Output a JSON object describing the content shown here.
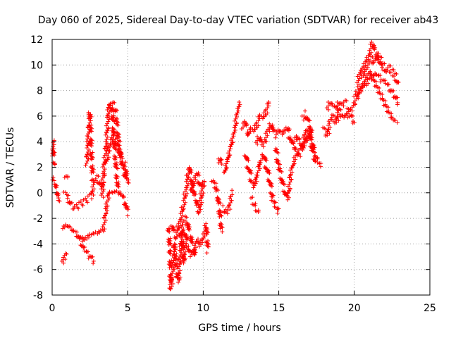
{
  "chart_data": {
    "type": "scatter",
    "title": "Day 060 of 2025, Sidereal Day-to-day VTEC variation (SDTVAR) for receiver ab43",
    "xlabel": "GPS time / hours",
    "ylabel": "SDTVAR / TECUs",
    "xlim": [
      0,
      25
    ],
    "ylim": [
      -8,
      12
    ],
    "xticks": [
      "0",
      "5",
      "10",
      "15",
      "20",
      "25"
    ],
    "yticks": [
      "-8",
      "-6",
      "-4",
      "-2",
      "0",
      "2",
      "4",
      "6",
      "8",
      "10",
      "12"
    ],
    "grid": true,
    "marker": "plus",
    "color": "#ff0000",
    "series_tracks": [
      [
        [
          0.0,
          1.3
        ],
        [
          0.15,
          1.0
        ],
        [
          0.3,
          0.3
        ],
        [
          0.4,
          -0.3
        ],
        [
          0.5,
          -0.6
        ]
      ],
      [
        [
          0.0,
          3.0
        ],
        [
          0.05,
          4.0
        ],
        [
          0.1,
          2.2
        ]
      ],
      [
        [
          0.7,
          -5.5
        ],
        [
          0.8,
          -5.2
        ],
        [
          0.9,
          -4.8
        ]
      ],
      [
        [
          0.8,
          1.3
        ],
        [
          0.9,
          1.4
        ],
        [
          1.0,
          1.3
        ]
      ],
      [
        [
          0.7,
          -2.6
        ],
        [
          1.0,
          -2.4
        ],
        [
          1.3,
          -2.7
        ],
        [
          1.6,
          -3.2
        ],
        [
          2.0,
          -3.6
        ],
        [
          2.3,
          -3.4
        ],
        [
          2.6,
          -3.1
        ],
        [
          3.0,
          -3.0
        ],
        [
          3.4,
          -2.8
        ],
        [
          3.6,
          -1.0
        ],
        [
          3.8,
          0.2
        ],
        [
          4.0,
          0.2
        ],
        [
          4.4,
          0.2
        ],
        [
          4.8,
          -0.6
        ],
        [
          5.0,
          -1.6
        ]
      ],
      [
        [
          0.8,
          -0.1
        ],
        [
          1.0,
          -0.3
        ],
        [
          1.2,
          -0.9
        ],
        [
          1.5,
          -1.2
        ],
        [
          1.8,
          -0.9
        ],
        [
          2.1,
          -0.7
        ],
        [
          2.4,
          -0.4
        ],
        [
          2.6,
          -0.2
        ],
        [
          2.8,
          0.8
        ],
        [
          3.0,
          1.2
        ],
        [
          3.2,
          0.6
        ],
        [
          3.4,
          0.4
        ]
      ],
      [
        [
          1.8,
          -3.5
        ],
        [
          2.0,
          -4.2
        ],
        [
          2.2,
          -4.6
        ],
        [
          2.5,
          -5.0
        ],
        [
          2.8,
          -5.4
        ]
      ],
      [
        [
          2.3,
          2.2
        ],
        [
          2.4,
          4.5
        ],
        [
          2.5,
          6.2
        ],
        [
          2.6,
          3.0
        ],
        [
          2.7,
          1.0
        ]
      ],
      [
        [
          3.3,
          -0.2
        ],
        [
          3.4,
          1.5
        ],
        [
          3.6,
          4.0
        ],
        [
          3.7,
          6.0
        ],
        [
          3.8,
          7.1
        ],
        [
          3.9,
          6.8
        ],
        [
          4.0,
          6.2
        ],
        [
          4.1,
          4.0
        ],
        [
          4.2,
          2.5
        ],
        [
          4.3,
          1.0
        ],
        [
          4.4,
          0.2
        ]
      ],
      [
        [
          3.6,
          2.4
        ],
        [
          3.8,
          3.6
        ],
        [
          4.0,
          4.5
        ],
        [
          4.2,
          4.2
        ],
        [
          4.4,
          3.5
        ],
        [
          4.6,
          2.5
        ],
        [
          4.8,
          2.2
        ],
        [
          5.0,
          0.8
        ]
      ],
      [
        [
          4.0,
          7.0
        ],
        [
          4.2,
          6.4
        ],
        [
          4.4,
          4.0
        ],
        [
          4.5,
          3.0
        ],
        [
          4.7,
          2.0
        ],
        [
          4.9,
          1.0
        ]
      ],
      [
        [
          7.7,
          -2.8
        ],
        [
          7.8,
          -4.5
        ],
        [
          7.85,
          -7.5
        ],
        [
          8.0,
          -6.0
        ],
        [
          8.1,
          -4.0
        ],
        [
          8.2,
          -5.5
        ],
        [
          8.35,
          -7.0
        ],
        [
          8.5,
          -4.5
        ],
        [
          8.6,
          -3.0
        ],
        [
          8.7,
          -5.5
        ],
        [
          8.8,
          -4.0
        ]
      ],
      [
        [
          7.9,
          -2.5
        ],
        [
          8.2,
          -3.5
        ],
        [
          8.5,
          -2.0
        ],
        [
          8.7,
          -1.0
        ],
        [
          8.9,
          0.5
        ],
        [
          9.0,
          1.5
        ],
        [
          9.1,
          2.0
        ],
        [
          9.2,
          1.0
        ],
        [
          9.3,
          0.3
        ],
        [
          9.5,
          -0.5
        ],
        [
          9.7,
          -1.5
        ],
        [
          9.8,
          -1.0
        ],
        [
          10.0,
          0.8
        ],
        [
          10.1,
          1.0
        ]
      ],
      [
        [
          8.8,
          -3.0
        ],
        [
          9.0,
          -4.2
        ],
        [
          9.2,
          -4.8
        ],
        [
          9.4,
          -4.4
        ],
        [
          9.6,
          -3.6
        ],
        [
          9.8,
          -4.0
        ],
        [
          10.0,
          -3.5
        ],
        [
          10.2,
          -2.5
        ],
        [
          10.3,
          -4.5
        ]
      ],
      [
        [
          8.5,
          -3.5
        ],
        [
          8.7,
          -2.5
        ],
        [
          8.9,
          -2.0
        ],
        [
          9.1,
          -3.0
        ],
        [
          9.3,
          -4.0
        ],
        [
          9.5,
          -5.0
        ]
      ],
      [
        [
          9.2,
          0.0
        ],
        [
          9.4,
          1.0
        ],
        [
          9.6,
          1.5
        ],
        [
          9.8,
          0.5
        ],
        [
          10.0,
          0.5
        ]
      ],
      [
        [
          10.6,
          1.0
        ],
        [
          10.8,
          0.5
        ],
        [
          11.0,
          -0.5
        ],
        [
          11.1,
          -1.5
        ],
        [
          11.2,
          -3.0
        ]
      ],
      [
        [
          11.0,
          2.5
        ],
        [
          11.1,
          2.8
        ],
        [
          11.2,
          2.4
        ]
      ],
      [
        [
          11.3,
          -1.2
        ],
        [
          11.5,
          -1.5
        ],
        [
          11.7,
          -1.2
        ],
        [
          11.8,
          -0.5
        ],
        [
          11.9,
          0.0
        ]
      ],
      [
        [
          11.4,
          1.5
        ],
        [
          11.6,
          2.5
        ],
        [
          11.8,
          3.5
        ],
        [
          12.0,
          4.5
        ],
        [
          12.1,
          5.0
        ],
        [
          12.2,
          6.0
        ],
        [
          12.3,
          6.5
        ],
        [
          12.4,
          7.0
        ]
      ],
      [
        [
          12.6,
          5.0
        ],
        [
          12.8,
          5.5
        ],
        [
          13.0,
          4.5
        ],
        [
          13.2,
          5.0
        ],
        [
          13.4,
          4.8
        ],
        [
          13.6,
          5.5
        ],
        [
          13.8,
          6.0
        ],
        [
          14.0,
          5.8
        ],
        [
          14.2,
          6.5
        ],
        [
          14.4,
          7.0
        ]
      ],
      [
        [
          12.8,
          3.0
        ],
        [
          13.0,
          2.0
        ],
        [
          13.2,
          1.0
        ],
        [
          13.4,
          0.5
        ],
        [
          13.6,
          1.5
        ],
        [
          13.8,
          2.5
        ],
        [
          14.0,
          3.0
        ],
        [
          14.2,
          2.0
        ],
        [
          14.4,
          1.0
        ],
        [
          14.6,
          -0.5
        ],
        [
          14.8,
          -1.0
        ],
        [
          15.0,
          -1.5
        ]
      ],
      [
        [
          13.5,
          4.0
        ],
        [
          13.7,
          4.5
        ],
        [
          13.9,
          3.8
        ],
        [
          14.1,
          4.2
        ],
        [
          14.3,
          5.0
        ],
        [
          14.5,
          5.5
        ],
        [
          14.7,
          4.5
        ]
      ],
      [
        [
          13.2,
          -0.5
        ],
        [
          13.4,
          -1.0
        ],
        [
          13.6,
          -1.5
        ]
      ],
      [
        [
          14.8,
          4.5
        ],
        [
          15.0,
          4.8
        ],
        [
          15.2,
          4.5
        ],
        [
          15.4,
          4.8
        ],
        [
          15.6,
          5.0
        ],
        [
          15.8,
          4.0
        ],
        [
          16.0,
          3.5
        ],
        [
          16.2,
          3.0
        ],
        [
          16.4,
          2.8
        ]
      ],
      [
        [
          14.8,
          3.5
        ],
        [
          15.0,
          2.0
        ],
        [
          15.2,
          1.0
        ],
        [
          15.4,
          0.0
        ],
        [
          15.6,
          -0.5
        ],
        [
          15.8,
          1.5
        ],
        [
          16.0,
          2.5
        ],
        [
          16.2,
          3.0
        ],
        [
          16.5,
          3.5
        ],
        [
          16.8,
          4.0
        ],
        [
          17.0,
          4.5
        ],
        [
          17.2,
          3.5
        ],
        [
          17.4,
          2.5
        ]
      ],
      [
        [
          16.0,
          4.0
        ],
        [
          16.2,
          4.5
        ],
        [
          16.4,
          4.0
        ],
        [
          16.6,
          3.5
        ],
        [
          16.8,
          5.0
        ],
        [
          17.0,
          4.8
        ],
        [
          17.2,
          4.0
        ],
        [
          17.4,
          3.0
        ],
        [
          17.6,
          2.5
        ],
        [
          17.8,
          2.2
        ]
      ],
      [
        [
          16.6,
          5.8
        ],
        [
          16.8,
          6.2
        ],
        [
          17.0,
          5.5
        ],
        [
          17.2,
          4.5
        ]
      ],
      [
        [
          18.0,
          5.0
        ],
        [
          18.2,
          4.5
        ],
        [
          18.4,
          5.5
        ],
        [
          18.6,
          6.0
        ],
        [
          18.8,
          5.5
        ],
        [
          19.0,
          6.5
        ],
        [
          19.2,
          6.0
        ],
        [
          19.4,
          5.8
        ],
        [
          19.6,
          6.5
        ],
        [
          19.8,
          6.0
        ],
        [
          20.0,
          5.5
        ]
      ],
      [
        [
          18.2,
          6.5
        ],
        [
          18.4,
          7.0
        ],
        [
          18.6,
          6.8
        ],
        [
          18.8,
          6.5
        ],
        [
          19.0,
          7.0
        ],
        [
          19.2,
          6.8
        ],
        [
          19.4,
          7.2
        ]
      ],
      [
        [
          19.8,
          6.5
        ],
        [
          20.0,
          7.0
        ],
        [
          20.2,
          7.5
        ],
        [
          20.4,
          8.0
        ],
        [
          20.6,
          8.5
        ],
        [
          20.8,
          9.0
        ],
        [
          21.0,
          9.5
        ],
        [
          21.2,
          9.0
        ],
        [
          21.4,
          8.5
        ],
        [
          21.6,
          8.0
        ],
        [
          21.8,
          7.5
        ],
        [
          22.0,
          7.0
        ],
        [
          22.2,
          6.5
        ],
        [
          22.4,
          6.0
        ],
        [
          22.6,
          5.8
        ],
        [
          22.8,
          5.6
        ]
      ],
      [
        [
          20.2,
          8.5
        ],
        [
          20.4,
          9.5
        ],
        [
          20.6,
          10.0
        ],
        [
          20.8,
          10.5
        ],
        [
          21.0,
          11.0
        ],
        [
          21.2,
          11.8
        ],
        [
          21.4,
          11.0
        ],
        [
          21.6,
          10.5
        ],
        [
          21.8,
          10.0
        ]
      ],
      [
        [
          20.5,
          9.0
        ],
        [
          20.7,
          9.5
        ],
        [
          20.9,
          10.0
        ],
        [
          21.1,
          10.5
        ],
        [
          21.3,
          10.2
        ],
        [
          21.5,
          10.8
        ],
        [
          21.7,
          10.5
        ],
        [
          21.9,
          10.0
        ],
        [
          22.1,
          9.5
        ],
        [
          22.3,
          9.8
        ],
        [
          22.5,
          9.5
        ],
        [
          22.7,
          9.2
        ],
        [
          22.9,
          8.5
        ]
      ],
      [
        [
          20.0,
          7.5
        ],
        [
          20.3,
          8.0
        ],
        [
          20.6,
          8.2
        ],
        [
          20.9,
          8.8
        ],
        [
          21.2,
          9.0
        ],
        [
          21.5,
          9.2
        ],
        [
          21.8,
          8.8
        ],
        [
          22.1,
          8.5
        ],
        [
          22.4,
          8.0
        ],
        [
          22.7,
          7.5
        ],
        [
          22.9,
          7.0
        ]
      ]
    ]
  }
}
